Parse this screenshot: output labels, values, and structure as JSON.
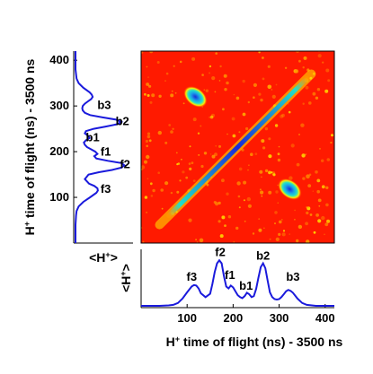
{
  "chart_data": [
    {
      "type": "heatmap",
      "panel": "main",
      "xlim": [
        0,
        420
      ],
      "ylim": [
        0,
        420
      ],
      "xlabel": "H+ time of flight (ns) -  3500 ns",
      "ylabel": "H+ time of flight (ns) - 3500 ns",
      "x_ticks": [
        100,
        200,
        300,
        400
      ],
      "y_ticks": [
        100,
        200,
        300,
        400
      ],
      "diagonal": {
        "from": 60,
        "to": 360
      },
      "islands": [
        {
          "x": 118,
          "y": 320,
          "peak": "high"
        },
        {
          "x": 323,
          "y": 118,
          "peak": "high"
        }
      ],
      "colors": {
        "background": "#ff1a00",
        "low": "#ff9a00",
        "mid": "#ffee00",
        "high": "#15c7e0",
        "peak": "#1a2bd8"
      }
    },
    {
      "type": "line",
      "panel": "bottom",
      "xlim": [
        0,
        420
      ],
      "ylabel": "<H+>",
      "x_ticks": [
        100,
        200,
        300,
        400
      ],
      "x_tick_labels": [
        "100",
        "200",
        "300",
        "400"
      ],
      "x": [
        0,
        20,
        40,
        60,
        70,
        80,
        90,
        100,
        110,
        115,
        120,
        125,
        130,
        140,
        150,
        155,
        160,
        165,
        170,
        175,
        180,
        185,
        190,
        195,
        200,
        205,
        210,
        215,
        220,
        225,
        230,
        235,
        240,
        245,
        250,
        255,
        260,
        265,
        270,
        275,
        280,
        285,
        290,
        295,
        300,
        305,
        310,
        315,
        320,
        325,
        330,
        340,
        350,
        360,
        380,
        400,
        420
      ],
      "y": [
        0.0,
        0.0,
        0.0,
        0.01,
        0.02,
        0.06,
        0.15,
        0.28,
        0.4,
        0.43,
        0.42,
        0.36,
        0.26,
        0.18,
        0.25,
        0.45,
        0.7,
        0.88,
        0.94,
        0.88,
        0.62,
        0.4,
        0.36,
        0.42,
        0.38,
        0.3,
        0.22,
        0.18,
        0.16,
        0.2,
        0.27,
        0.24,
        0.18,
        0.2,
        0.35,
        0.58,
        0.8,
        0.88,
        0.78,
        0.52,
        0.28,
        0.18,
        0.14,
        0.13,
        0.14,
        0.18,
        0.24,
        0.3,
        0.33,
        0.31,
        0.27,
        0.15,
        0.06,
        0.02,
        0.0,
        0.0,
        0.0
      ],
      "color": "#1a1adc",
      "annotations": [
        {
          "text": "f3",
          "x": 110,
          "y": 0.52
        },
        {
          "text": "f2",
          "x": 172,
          "y": 1.03
        },
        {
          "text": "f1",
          "x": 193,
          "y": 0.56
        },
        {
          "text": "b1",
          "x": 228,
          "y": 0.33
        },
        {
          "text": "b2",
          "x": 265,
          "y": 0.96
        },
        {
          "text": "b3",
          "x": 330,
          "y": 0.52
        }
      ]
    },
    {
      "type": "line",
      "panel": "left",
      "orientation": "vertical",
      "ylim": [
        0,
        420
      ],
      "ylabel": "H+ time of flight (ns) - 3500 ns",
      "xlabel": "<H+>",
      "y_ticks": [
        100,
        200,
        300,
        400
      ],
      "y_tick_labels": [
        "100",
        "200",
        "300",
        "400"
      ],
      "y": [
        0,
        20,
        40,
        60,
        70,
        80,
        90,
        100,
        110,
        115,
        120,
        125,
        130,
        140,
        150,
        155,
        160,
        165,
        170,
        175,
        180,
        185,
        190,
        195,
        200,
        205,
        210,
        215,
        220,
        225,
        230,
        235,
        240,
        245,
        250,
        255,
        260,
        265,
        270,
        275,
        280,
        285,
        290,
        295,
        300,
        305,
        310,
        315,
        320,
        325,
        330,
        340,
        350,
        360,
        380,
        400,
        420
      ],
      "x": [
        0.0,
        0.0,
        0.0,
        0.01,
        0.02,
        0.06,
        0.15,
        0.28,
        0.4,
        0.43,
        0.42,
        0.36,
        0.26,
        0.18,
        0.25,
        0.45,
        0.7,
        0.88,
        0.94,
        0.88,
        0.62,
        0.4,
        0.36,
        0.42,
        0.38,
        0.3,
        0.22,
        0.18,
        0.16,
        0.2,
        0.27,
        0.24,
        0.18,
        0.2,
        0.35,
        0.58,
        0.8,
        0.88,
        0.78,
        0.52,
        0.28,
        0.18,
        0.14,
        0.13,
        0.14,
        0.18,
        0.24,
        0.3,
        0.33,
        0.31,
        0.27,
        0.15,
        0.06,
        0.02,
        0.0,
        0.0,
        0.0
      ],
      "color": "#1a1adc",
      "annotations": [
        {
          "text": "b3",
          "x": 0.55,
          "y": 301
        },
        {
          "text": "b2",
          "x": 0.9,
          "y": 266
        },
        {
          "text": "b1",
          "x": 0.33,
          "y": 231
        },
        {
          "text": "f1",
          "x": 0.58,
          "y": 199
        },
        {
          "text": "f2",
          "x": 0.95,
          "y": 172
        },
        {
          "text": "f3",
          "x": 0.58,
          "y": 118
        }
      ]
    }
  ]
}
